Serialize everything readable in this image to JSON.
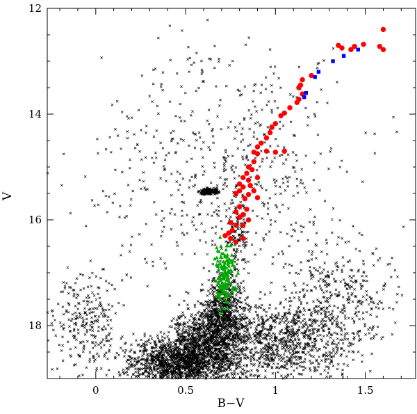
{
  "chart_data": {
    "type": "scatter",
    "xlabel": "B−V",
    "ylabel": "V",
    "xlim": [
      -0.27,
      1.78
    ],
    "ylim": [
      19.0,
      12.0
    ],
    "y_inverted": true,
    "xticks": [
      {
        "value": 0,
        "label": "0"
      },
      {
        "value": 0.5,
        "label": "0.5"
      },
      {
        "value": 1,
        "label": "1"
      },
      {
        "value": 1.5,
        "label": "1.5"
      }
    ],
    "yticks": [
      {
        "value": 12,
        "label": "12"
      },
      {
        "value": 14,
        "label": "14"
      },
      {
        "value": 16,
        "label": "16"
      },
      {
        "value": 18,
        "label": "18"
      }
    ],
    "legend": "none",
    "grid": false,
    "series": [
      {
        "marker": "cross",
        "color": "#000000",
        "note_count_approx": 5000,
        "regions": [
          {
            "x_center": 0.48,
            "y_center": 18.7,
            "x_spread": 0.22,
            "y_spread": 0.35,
            "count": 1500
          },
          {
            "x_center": 0.62,
            "y_center": 18.2,
            "x_spread": 0.14,
            "y_spread": 0.45,
            "count": 700
          },
          {
            "x_center": 0.72,
            "y_center": 17.6,
            "x_spread": 0.08,
            "y_spread": 0.45,
            "count": 450
          },
          {
            "x_center": 1.0,
            "y_center": 18.3,
            "x_spread": 0.35,
            "y_spread": 0.55,
            "count": 1100
          },
          {
            "x_center": 1.35,
            "y_center": 17.4,
            "x_spread": 0.22,
            "y_spread": 0.7,
            "count": 330
          },
          {
            "x_center": -0.05,
            "y_center": 18.0,
            "x_spread": 0.15,
            "y_spread": 0.8,
            "count": 260
          },
          {
            "x_center": 0.63,
            "y_center": 15.47,
            "x_spread": 0.04,
            "y_spread": 0.05,
            "count": 160
          },
          {
            "x_center": 0.8,
            "y_center": 16.2,
            "x_spread": 0.05,
            "y_spread": 0.6,
            "count": 120
          },
          {
            "x_center": 0.7,
            "y_center": 15.5,
            "x_spread": 0.55,
            "y_spread": 1.3,
            "count": 420
          },
          {
            "x_center": 0.75,
            "y_center": 13.8,
            "x_spread": 0.5,
            "y_spread": 1.0,
            "count": 160
          }
        ]
      },
      {
        "marker": "circle",
        "color": "#ff0000",
        "points": [
          [
            1.6,
            12.4
          ],
          [
            1.49,
            12.68
          ],
          [
            1.44,
            12.72
          ],
          [
            1.42,
            12.78
          ],
          [
            1.58,
            12.72
          ],
          [
            1.6,
            12.78
          ],
          [
            1.35,
            12.7
          ],
          [
            1.37,
            12.75
          ],
          [
            1.2,
            13.27
          ],
          [
            1.15,
            13.35
          ],
          [
            1.14,
            13.45
          ],
          [
            1.13,
            13.5
          ],
          [
            1.15,
            13.62
          ],
          [
            1.13,
            13.72
          ],
          [
            1.12,
            13.78
          ],
          [
            1.08,
            13.88
          ],
          [
            1.03,
            14.03
          ],
          [
            1.05,
            13.98
          ],
          [
            0.98,
            14.25
          ],
          [
            1.0,
            14.18
          ],
          [
            0.97,
            14.35
          ],
          [
            0.95,
            14.45
          ],
          [
            0.92,
            14.55
          ],
          [
            0.9,
            14.62
          ],
          [
            0.88,
            14.72
          ],
          [
            0.9,
            14.75
          ],
          [
            0.95,
            14.7
          ],
          [
            1.0,
            14.72
          ],
          [
            1.05,
            14.7
          ],
          [
            0.88,
            14.9
          ],
          [
            0.85,
            15.0
          ],
          [
            0.87,
            15.05
          ],
          [
            0.84,
            15.12
          ],
          [
            0.82,
            15.2
          ],
          [
            0.9,
            15.2
          ],
          [
            0.85,
            15.25
          ],
          [
            0.8,
            15.32
          ],
          [
            0.86,
            15.35
          ],
          [
            0.82,
            15.38
          ],
          [
            0.8,
            15.45
          ],
          [
            0.88,
            15.45
          ],
          [
            0.78,
            15.5
          ],
          [
            0.85,
            15.52
          ],
          [
            0.9,
            15.58
          ],
          [
            0.83,
            15.6
          ],
          [
            0.8,
            15.75
          ],
          [
            0.84,
            15.8
          ],
          [
            0.78,
            15.85
          ],
          [
            0.82,
            15.9
          ],
          [
            0.8,
            15.95
          ],
          [
            0.85,
            16.0
          ],
          [
            0.75,
            16.05
          ],
          [
            0.78,
            16.1
          ],
          [
            0.82,
            16.1
          ],
          [
            0.76,
            16.2
          ],
          [
            0.74,
            16.25
          ],
          [
            0.72,
            16.3
          ],
          [
            0.75,
            16.35
          ],
          [
            0.78,
            16.42
          ],
          [
            0.82,
            16.35
          ]
        ]
      },
      {
        "marker": "square",
        "color": "#0000ff",
        "points": [
          [
            1.46,
            12.78
          ],
          [
            1.38,
            12.9
          ],
          [
            1.32,
            13.0
          ],
          [
            1.24,
            13.2
          ],
          [
            1.22,
            13.3
          ],
          [
            1.17,
            13.6
          ],
          [
            1.16,
            13.68
          ]
        ]
      },
      {
        "marker": "triangle",
        "color": "#00aa00",
        "region": {
          "x_center": 0.72,
          "y_center": 17.0,
          "x_spread": 0.04,
          "y_spread": 0.45,
          "count": 140
        }
      }
    ]
  }
}
